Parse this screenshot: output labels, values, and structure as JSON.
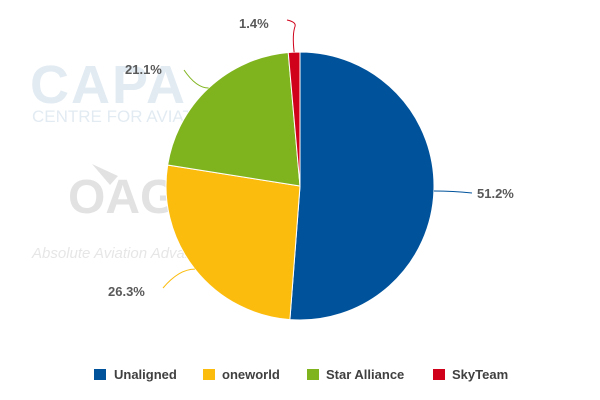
{
  "watermark": {
    "capa_logo": "CAPA",
    "capa_sub": "CENTRE FOR AVIATION",
    "oag_logo": "OAG",
    "oag_tagline": "Absolute Aviation Advantage"
  },
  "chart_data": {
    "type": "pie",
    "title": "",
    "categories": [
      "Unaligned",
      "oneworld",
      "Star Alliance",
      "SkyTeam"
    ],
    "values": [
      51.2,
      26.3,
      21.1,
      1.4
    ],
    "value_labels": [
      "51.2%",
      "26.3%",
      "21.1%",
      "1.4%"
    ],
    "colors": [
      "#00529b",
      "#fbbc0e",
      "#80b41e",
      "#d0021b"
    ],
    "start_angle": "12 o'clock, clockwise",
    "data_labels": "outside with leader lines",
    "legend": {
      "position": "bottom",
      "entries": [
        "Unaligned",
        "oneworld",
        "Star Alliance",
        "SkyTeam"
      ]
    }
  }
}
